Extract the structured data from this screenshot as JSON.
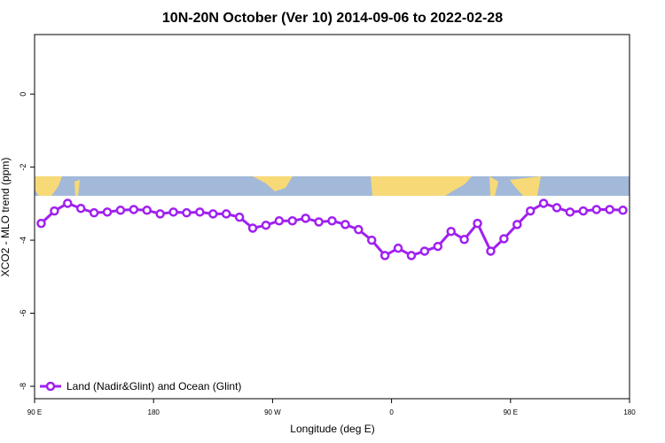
{
  "chart_data": {
    "type": "line",
    "title": "10N-20N October (Ver 10)   2014-09-06 to 2022-02-28",
    "x_label": "Longitude (deg E)",
    "y_label": "XCO2 - MLO trend (ppm)",
    "x": [
      95,
      105,
      115,
      125,
      135,
      145,
      155,
      165,
      175,
      185,
      195,
      205,
      215,
      225,
      235,
      245,
      255,
      265,
      275,
      285,
      295,
      305,
      315,
      325,
      335,
      345,
      355,
      365,
      375,
      385,
      395,
      405,
      415,
      425,
      435,
      445,
      455,
      465,
      475,
      485,
      495,
      505,
      515,
      525,
      535
    ],
    "series": [
      {
        "name": "Land (Nadir&Glint) and Ocean (Glint)",
        "color": "#a020f0",
        "values": [
          -3.54,
          -3.2,
          -2.99,
          -3.13,
          -3.25,
          -3.23,
          -3.18,
          -3.16,
          -3.18,
          -3.28,
          -3.23,
          -3.25,
          -3.23,
          -3.28,
          -3.28,
          -3.37,
          -3.67,
          -3.59,
          -3.47,
          -3.47,
          -3.4,
          -3.5,
          -3.47,
          -3.57,
          -3.71,
          -4.0,
          -4.42,
          -4.22,
          -4.42,
          -4.3,
          -4.17,
          -3.76,
          -3.98,
          -3.54,
          -4.3,
          -3.96,
          -3.57,
          -3.2,
          -2.99,
          -3.11,
          -3.23,
          -3.2,
          -3.16,
          -3.16,
          -3.18
        ]
      }
    ],
    "xlim": [
      90,
      540
    ],
    "xticks": [
      {
        "value": 90,
        "label": "90 E"
      },
      {
        "value": 180,
        "label": "180"
      },
      {
        "value": 270,
        "label": "90 W"
      },
      {
        "value": 360,
        "label": "0"
      },
      {
        "value": 450,
        "label": "90 E"
      },
      {
        "value": 540,
        "label": "180"
      }
    ],
    "ylim": [
      -8.34,
      1.63
    ],
    "yticks": [
      0,
      -2,
      -4,
      -6,
      -8
    ],
    "legend": "bottom-left"
  }
}
